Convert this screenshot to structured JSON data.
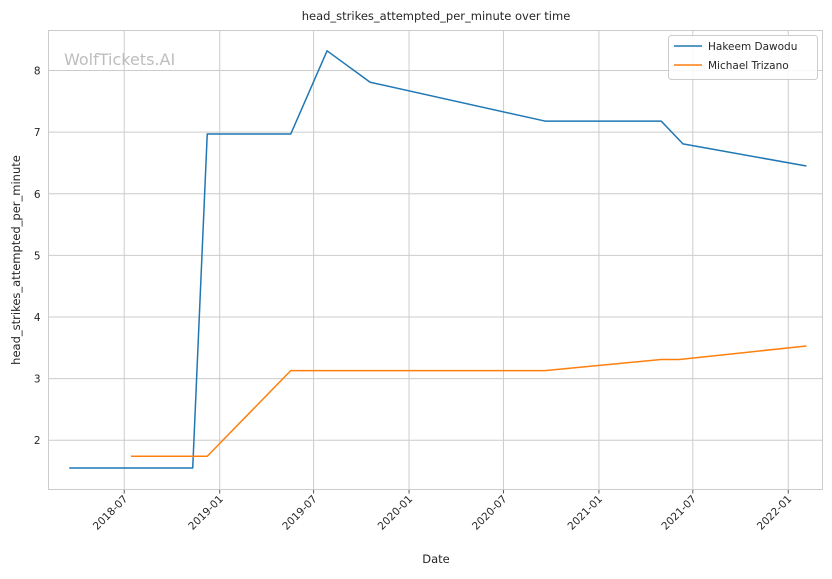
{
  "chart_data": {
    "type": "line",
    "title": "head_strikes_attempted_per_minute over time",
    "xlabel": "Date",
    "ylabel": "head_strikes_attempted_per_minute",
    "watermark": "WolfTickets.AI",
    "x_ticks": [
      "2018-07",
      "2019-01",
      "2019-07",
      "2020-01",
      "2020-07",
      "2021-01",
      "2021-07",
      "2022-01"
    ],
    "y_ticks": [
      2,
      3,
      4,
      5,
      6,
      7,
      8
    ],
    "ylim": [
      1.2,
      8.65
    ],
    "xlim": [
      "2018-02-05",
      "2022-03-08"
    ],
    "grid": true,
    "legend_position": "top-right",
    "series": [
      {
        "name": "Hakeem Dawodu",
        "color": "#1f77b4",
        "points": [
          [
            "2018-03-17",
            1.55
          ],
          [
            "2018-11-10",
            1.55
          ],
          [
            "2018-12-08",
            6.97
          ],
          [
            "2019-05-18",
            6.97
          ],
          [
            "2019-07-27",
            8.32
          ],
          [
            "2019-10-18",
            7.81
          ],
          [
            "2020-09-19",
            7.18
          ],
          [
            "2021-05-01",
            7.18
          ],
          [
            "2021-06-12",
            6.81
          ],
          [
            "2022-02-05",
            6.45
          ]
        ]
      },
      {
        "name": "Michael Trizano",
        "color": "#ff7f0e",
        "points": [
          [
            "2018-07-14",
            1.74
          ],
          [
            "2018-12-08",
            1.74
          ],
          [
            "2019-05-18",
            3.13
          ],
          [
            "2020-09-19",
            3.13
          ],
          [
            "2021-05-01",
            3.31
          ],
          [
            "2021-06-05",
            3.31
          ],
          [
            "2022-02-05",
            3.53
          ]
        ]
      }
    ]
  }
}
